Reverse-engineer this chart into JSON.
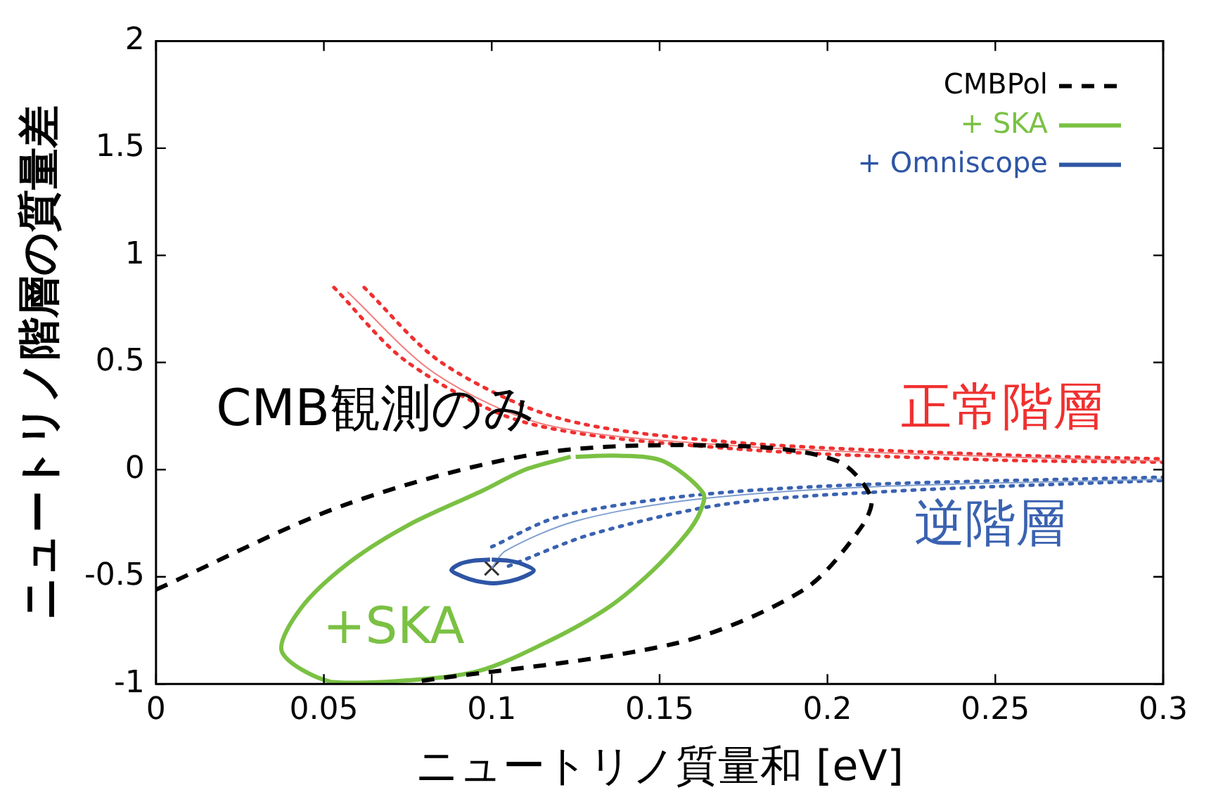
{
  "chart_data": {
    "type": "line",
    "xlabel": "ニュートリノ質量和 [eV]",
    "ylabel": "ニュートリノ階層の質量差",
    "xlim": [
      0,
      0.3
    ],
    "xticks": [
      0,
      0.05,
      0.1,
      0.15,
      0.2,
      0.25,
      0.3
    ],
    "ylim": [
      -1,
      2
    ],
    "yticks": [
      -1,
      -0.5,
      0,
      0.5,
      1,
      1.5,
      2
    ],
    "grid": false,
    "legend": "top right",
    "series": [
      {
        "name": "CMBPol",
        "line_style": "dashed",
        "color": "#000000",
        "x": [
          0,
          0.057,
          0.116,
          0.174,
          0.203,
          0.213,
          0.21,
          0.193,
          0.155,
          0.077
        ],
        "values": [
          -0.56,
          -0.16,
          0.08,
          0.11,
          0.04,
          -0.13,
          -0.27,
          -0.56,
          -0.81,
          -0.99
        ]
      },
      {
        "name": "+ SKA",
        "line_style": "solid",
        "color": "#7ac143",
        "x": [
          0.125,
          0.138,
          0.151,
          0.163,
          0.162,
          0.158,
          0.148,
          0.135,
          0.117,
          0.096,
          0.073,
          0.052,
          0.0375,
          0.043,
          0.057,
          0.075,
          0.097,
          0.11,
          0.1235
        ],
        "values": [
          0.06,
          0.065,
          0.04,
          -0.11,
          -0.2,
          -0.3,
          -0.47,
          -0.64,
          -0.8,
          -0.94,
          -0.985,
          -0.99,
          -0.85,
          -0.65,
          -0.44,
          -0.26,
          -0.1,
          0.0,
          0.06
        ]
      },
      {
        "name": "+ Omniscope",
        "line_style": "solid",
        "color": "#2e55a5",
        "x": [
          0.1,
          0.105,
          0.109,
          0.1125,
          0.1095,
          0.1055,
          0.1005,
          0.0955,
          0.0915,
          0.088,
          0.0905,
          0.0945,
          0.0995
        ],
        "values": [
          -0.42,
          -0.425,
          -0.44,
          -0.47,
          -0.5,
          -0.52,
          -0.53,
          -0.52,
          -0.5,
          -0.47,
          -0.44,
          -0.425,
          -0.42
        ]
      },
      {
        "line_style": "solid",
        "color": "#f08080",
        "x": [
          0.057,
          0.083,
          0.116,
          0.174,
          0.251,
          0.3
        ],
        "values": [
          0.83,
          0.45,
          0.21,
          0.11,
          0.06,
          0.04
        ]
      },
      {
        "line_style": "dotted",
        "color": "#f03030",
        "x": [
          0.062,
          0.085,
          0.12,
          0.17,
          0.25,
          0.3
        ],
        "values": [
          0.85,
          0.5,
          0.24,
          0.13,
          0.07,
          0.05
        ]
      },
      {
        "line_style": "dotted",
        "color": "#f03030",
        "x": [
          0.053,
          0.075,
          0.11,
          0.17,
          0.25,
          0.3
        ],
        "values": [
          0.85,
          0.5,
          0.22,
          0.1,
          0.045,
          0.035
        ]
      },
      {
        "line_style": "solid",
        "color": "#7f9fd0",
        "x": [
          0.1,
          0.104,
          0.125,
          0.16,
          0.213,
          0.3
        ],
        "values": [
          -0.46,
          -0.38,
          -0.24,
          -0.14,
          -0.08,
          -0.045
        ]
      },
      {
        "line_style": "dotted",
        "color": "#3a62b0",
        "x": [
          0.1,
          0.12,
          0.16,
          0.21,
          0.3
        ],
        "values": [
          -0.36,
          -0.22,
          -0.12,
          -0.07,
          -0.035
        ]
      },
      {
        "line_style": "dotted",
        "color": "#3a62b0",
        "x": [
          0.105,
          0.13,
          0.17,
          0.22,
          0.3
        ],
        "values": [
          -0.45,
          -0.3,
          -0.16,
          -0.1,
          -0.05
        ]
      },
      {
        "type": "scatter",
        "marker": "cross",
        "color": "#333333",
        "x": [
          0.1
        ],
        "values": [
          -0.46
        ]
      }
    ],
    "annotations": [
      "CMB観測のみ",
      "正常階層",
      "逆階層",
      "+SKA"
    ]
  }
}
